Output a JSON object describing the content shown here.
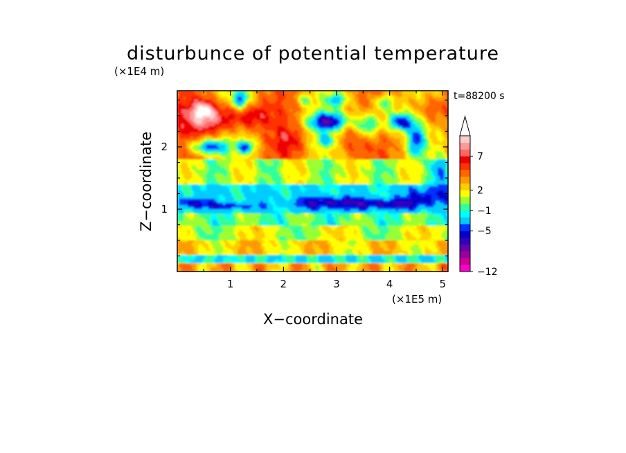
{
  "chart_data": {
    "type": "heatmap",
    "title": "disturbunce of potential temperature",
    "time_label": "t=88200 s",
    "xlabel": "X−coordinate",
    "ylabel": "Z−coordinate",
    "x_unit": "(×1E5 m)",
    "y_unit": "(×1E4 m)",
    "xlim": [
      0,
      5.1
    ],
    "ylim": [
      0,
      2.9
    ],
    "x_ticks": [
      "1",
      "2",
      "3",
      "4",
      "5"
    ],
    "y_ticks": [
      "1",
      "2"
    ],
    "colorbar": {
      "colors": [
        "#ff00cc",
        "#cc0099",
        "#99009a",
        "#6600aa",
        "#3300bb",
        "#0000cc",
        "#0033ff",
        "#00ccff",
        "#00ffff",
        "#33ff99",
        "#99ff33",
        "#ffff00",
        "#ffcc00",
        "#ff9900",
        "#ff6600",
        "#ff3300",
        "#ee0000",
        "#ff6666",
        "#ff9999",
        "#ffcccc",
        "#ffffff"
      ],
      "labels": [
        "−12",
        "−5",
        "−1",
        "2",
        "7"
      ],
      "extend": "max"
    },
    "bands_description_rows": [
      {
        "z_range": [
          0,
          0.3
        ],
        "dominant": "yellow/cyan/orange thin layers"
      },
      {
        "z_range": [
          0.3,
          0.9
        ],
        "dominant": "green/yellow/orange"
      },
      {
        "z_range": [
          0.9,
          1.4
        ],
        "dominant": "cyan with blue patches"
      },
      {
        "z_range": [
          1.4,
          1.8
        ],
        "dominant": "green/yellow"
      },
      {
        "z_range": [
          1.8,
          2.9
        ],
        "dominant": "orange/red with blue/purple cores"
      }
    ]
  }
}
